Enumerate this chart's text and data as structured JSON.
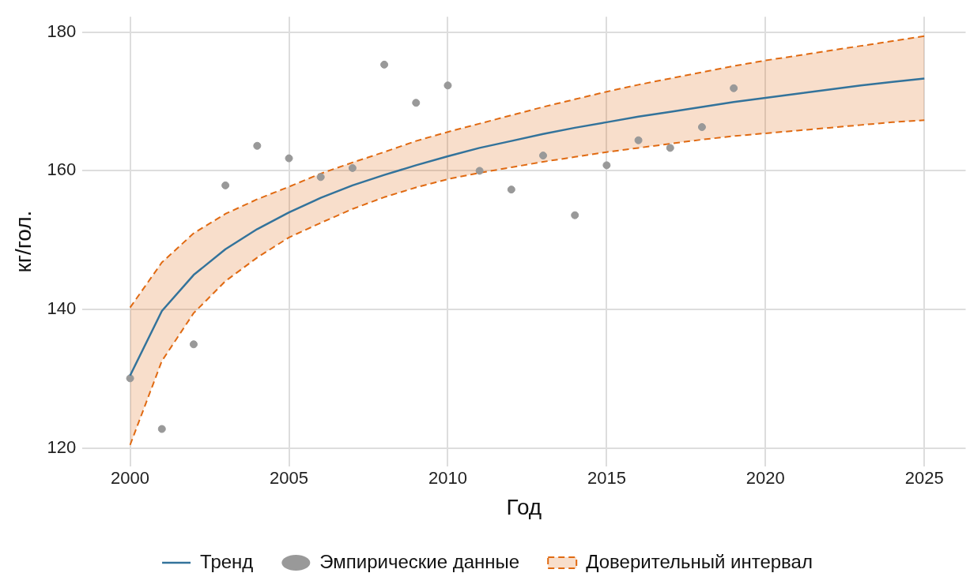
{
  "chart_data": {
    "type": "line",
    "xlabel": "Год",
    "ylabel": "кг/гол.",
    "xlim": [
      1998.5,
      2026.3
    ],
    "xticks": [
      2000,
      2005,
      2010,
      2015,
      2020,
      2025
    ],
    "ylim": [
      117.4,
      182.2
    ],
    "yticks": [
      120,
      140,
      160,
      180
    ],
    "grid": true,
    "legend": "bottom",
    "series": [
      {
        "type": "line",
        "name": "Тренд",
        "color": "#33739b",
        "marker": "none",
        "x": [
          2000,
          2001,
          2002,
          2003,
          2004,
          2005,
          2006,
          2007,
          2008,
          2009,
          2010,
          2011,
          2012,
          2013,
          2014,
          2015,
          2016,
          2017,
          2018,
          2019,
          2020,
          2021,
          2022,
          2023,
          2024,
          2025
        ],
        "values": [
          130.5,
          139.8,
          145.0,
          148.7,
          151.6,
          154.0,
          156.1,
          157.9,
          159.4,
          160.8,
          162.1,
          163.3,
          164.3,
          165.3,
          166.2,
          167.0,
          167.8,
          168.5,
          169.2,
          169.9,
          170.5,
          171.1,
          171.7,
          172.3,
          172.8,
          173.3
        ]
      },
      {
        "type": "scatter",
        "name": "Эмпирические данные",
        "color": "#999999",
        "marker": "circle",
        "x": [
          2000,
          2001,
          2002,
          2003,
          2004,
          2005,
          2006,
          2007,
          2008,
          2009,
          2010,
          2011,
          2012,
          2013,
          2014,
          2015,
          2016,
          2017,
          2018,
          2019
        ],
        "values": [
          130.1,
          122.8,
          135.0,
          157.9,
          163.6,
          161.8,
          159.1,
          160.4,
          175.3,
          169.8,
          172.3,
          160.0,
          157.3,
          162.2,
          153.6,
          160.8,
          164.4,
          163.3,
          166.3,
          171.9
        ]
      },
      {
        "type": "line",
        "color": "#e06a12",
        "line_style": "dashed",
        "marker": "none",
        "x": [
          2000,
          2001,
          2002,
          2003,
          2004,
          2005,
          2006,
          2007,
          2008,
          2009,
          2010,
          2011,
          2012,
          2013,
          2014,
          2015,
          2016,
          2017,
          2018,
          2019,
          2020,
          2021,
          2022,
          2023,
          2024,
          2025
        ],
        "values": [
          120.5,
          132.6,
          139.5,
          144.1,
          147.5,
          150.4,
          152.5,
          154.5,
          156.2,
          157.6,
          158.8,
          159.7,
          160.5,
          161.3,
          162.0,
          162.7,
          163.3,
          163.9,
          164.5,
          165.0,
          165.4,
          165.8,
          166.2,
          166.6,
          167.0,
          167.3
        ]
      },
      {
        "type": "area",
        "name": "Доверительный интервал",
        "color": "#e06a12",
        "line_style": "dashed",
        "x": [
          2000,
          2001,
          2002,
          2003,
          2004,
          2005,
          2006,
          2007,
          2008,
          2009,
          2010,
          2011,
          2012,
          2013,
          2014,
          2015,
          2016,
          2017,
          2018,
          2019,
          2020,
          2021,
          2022,
          2023,
          2024,
          2025
        ],
        "values": [
          140.3,
          146.8,
          151.0,
          153.8,
          155.9,
          157.7,
          159.6,
          161.2,
          162.7,
          164.3,
          165.6,
          166.8,
          168.0,
          169.2,
          170.3,
          171.4,
          172.4,
          173.3,
          174.2,
          175.1,
          175.9,
          176.6,
          177.3,
          178.0,
          178.7,
          179.4
        ]
      }
    ]
  }
}
